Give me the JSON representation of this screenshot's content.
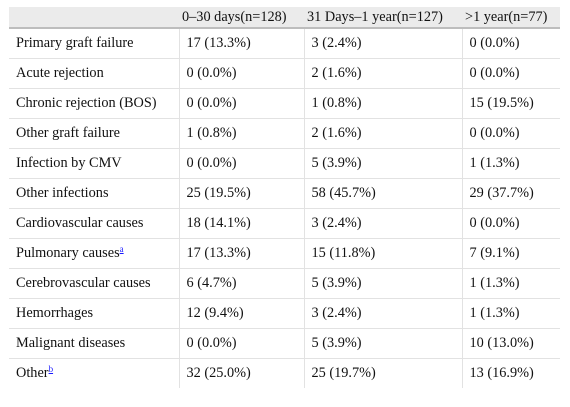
{
  "table": {
    "headers": [
      "",
      "0–30 days(n=128)",
      "31 Days–1 year(n=127)",
      ">1 year(n=77)"
    ],
    "rows": [
      {
        "cause": "Primary graft failure",
        "note": "",
        "values": [
          "17 (13.3%)",
          "3 (2.4%)",
          "0 (0.0%)"
        ]
      },
      {
        "cause": "Acute rejection",
        "note": "",
        "values": [
          "0 (0.0%)",
          "2 (1.6%)",
          "0 (0.0%)"
        ]
      },
      {
        "cause": "Chronic rejection (BOS)",
        "note": "",
        "values": [
          "0 (0.0%)",
          "1 (0.8%)",
          "15 (19.5%)"
        ]
      },
      {
        "cause": "Other graft failure",
        "note": "",
        "values": [
          "1 (0.8%)",
          "2 (1.6%)",
          "0 (0.0%)"
        ]
      },
      {
        "cause": "Infection by CMV",
        "note": "",
        "values": [
          "0 (0.0%)",
          "5 (3.9%)",
          "1 (1.3%)"
        ]
      },
      {
        "cause": "Other infections",
        "note": "",
        "values": [
          "25 (19.5%)",
          "58 (45.7%)",
          "29 (37.7%)"
        ]
      },
      {
        "cause": "Cardiovascular causes",
        "note": "",
        "values": [
          "18 (14.1%)",
          "3 (2.4%)",
          "0 (0.0%)"
        ]
      },
      {
        "cause": "Pulmonary causes",
        "note": "a",
        "values": [
          "17 (13.3%)",
          "15 (11.8%)",
          "7 (9.1%)"
        ]
      },
      {
        "cause": "Cerebrovascular causes",
        "note": "",
        "values": [
          "6 (4.7%)",
          "5 (3.9%)",
          "1 (1.3%)"
        ]
      },
      {
        "cause": "Hemorrhages",
        "note": "",
        "values": [
          "12 (9.4%)",
          "3 (2.4%)",
          "1 (1.3%)"
        ]
      },
      {
        "cause": "Malignant diseases",
        "note": "",
        "values": [
          "0 (0.0%)",
          "5 (3.9%)",
          "10 (13.0%)"
        ]
      },
      {
        "cause": "Other",
        "note": "b",
        "values": [
          "32 (25.0%)",
          "25 (19.7%)",
          "13 (16.9%)"
        ]
      }
    ]
  }
}
